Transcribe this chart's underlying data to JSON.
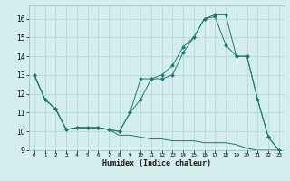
{
  "xlabel": "Humidex (Indice chaleur)",
  "background_color": "#d4eeee",
  "grid_color": "#b0d4d4",
  "line_color": "#1a7a6e",
  "xlim": [
    -0.5,
    23.5
  ],
  "ylim": [
    9.0,
    16.7
  ],
  "yticks": [
    9,
    10,
    11,
    12,
    13,
    14,
    15,
    16
  ],
  "xticks": [
    0,
    1,
    2,
    3,
    4,
    5,
    6,
    7,
    8,
    9,
    10,
    11,
    12,
    13,
    14,
    15,
    16,
    17,
    18,
    19,
    20,
    21,
    22,
    23
  ],
  "series": [
    {
      "x": [
        0,
        1,
        2,
        3,
        4,
        5,
        6,
        7,
        8,
        9,
        10,
        11,
        12,
        13,
        14,
        15,
        16,
        17,
        18,
        19,
        20,
        21,
        22,
        23
      ],
      "y": [
        13.0,
        11.7,
        11.2,
        10.1,
        10.2,
        10.2,
        10.2,
        10.1,
        9.8,
        9.8,
        9.7,
        9.6,
        9.6,
        9.5,
        9.5,
        9.5,
        9.4,
        9.4,
        9.4,
        9.3,
        9.1,
        9.0,
        9.0,
        9.0
      ],
      "markers": false
    },
    {
      "x": [
        0,
        1,
        2,
        3,
        4,
        5,
        6,
        7,
        8,
        9,
        10,
        11,
        12,
        13,
        14,
        15,
        16,
        17,
        18,
        19,
        20,
        21,
        22,
        23
      ],
      "y": [
        13.0,
        11.7,
        11.2,
        10.1,
        10.2,
        10.2,
        10.2,
        10.1,
        10.0,
        11.0,
        11.7,
        12.8,
        12.8,
        13.0,
        14.2,
        15.0,
        16.0,
        16.2,
        16.2,
        14.0,
        14.0,
        11.7,
        9.7,
        9.0
      ],
      "markers": true
    },
    {
      "x": [
        0,
        1,
        2,
        3,
        4,
        5,
        6,
        7,
        8,
        9,
        10,
        11,
        12,
        13,
        14,
        15,
        16,
        17,
        18,
        19,
        20,
        21,
        22,
        23
      ],
      "y": [
        13.0,
        11.7,
        11.2,
        10.1,
        10.2,
        10.2,
        10.2,
        10.1,
        10.0,
        11.0,
        12.8,
        12.8,
        13.0,
        13.5,
        14.5,
        15.0,
        16.0,
        16.1,
        14.6,
        14.0,
        14.0,
        11.7,
        9.7,
        9.0
      ],
      "markers": true
    }
  ]
}
